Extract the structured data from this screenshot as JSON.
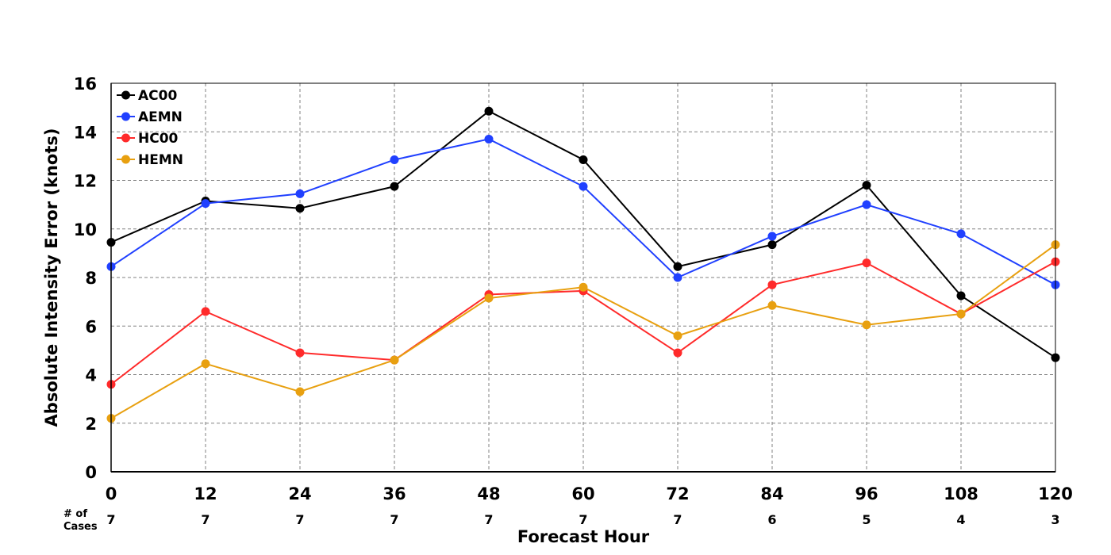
{
  "chart_data": {
    "type": "line",
    "xlabel": "Forecast Hour",
    "ylabel": "Absolute Intensity Error (knots)",
    "x": [
      0,
      12,
      24,
      36,
      48,
      60,
      72,
      84,
      96,
      108,
      120
    ],
    "xlim": [
      0,
      120
    ],
    "ylim": [
      0,
      16
    ],
    "yticks": [
      0,
      2,
      4,
      6,
      8,
      10,
      12,
      14,
      16
    ],
    "grid": true,
    "legend_position": "top-left",
    "cases_label": "# of\nCases",
    "cases": [
      7,
      7,
      7,
      7,
      7,
      7,
      7,
      6,
      5,
      4,
      3
    ],
    "series": [
      {
        "name": "AC00",
        "color": "#000000",
        "values": [
          9.45,
          11.15,
          10.85,
          11.75,
          14.85,
          12.85,
          8.45,
          9.35,
          11.8,
          7.25,
          4.7
        ]
      },
      {
        "name": "AEMN",
        "color": "#2040ff",
        "values": [
          8.45,
          11.05,
          11.45,
          12.85,
          13.7,
          11.75,
          8.0,
          9.7,
          11.0,
          9.8,
          7.7
        ]
      },
      {
        "name": "HC00",
        "color": "#ff2a2a",
        "values": [
          3.6,
          6.6,
          4.9,
          4.6,
          7.3,
          7.45,
          4.9,
          7.7,
          8.6,
          6.5,
          8.65
        ]
      },
      {
        "name": "HEMN",
        "color": "#e8a010",
        "values": [
          2.2,
          4.45,
          3.3,
          4.6,
          7.15,
          7.6,
          5.6,
          6.85,
          6.05,
          6.5,
          9.35
        ]
      }
    ]
  }
}
